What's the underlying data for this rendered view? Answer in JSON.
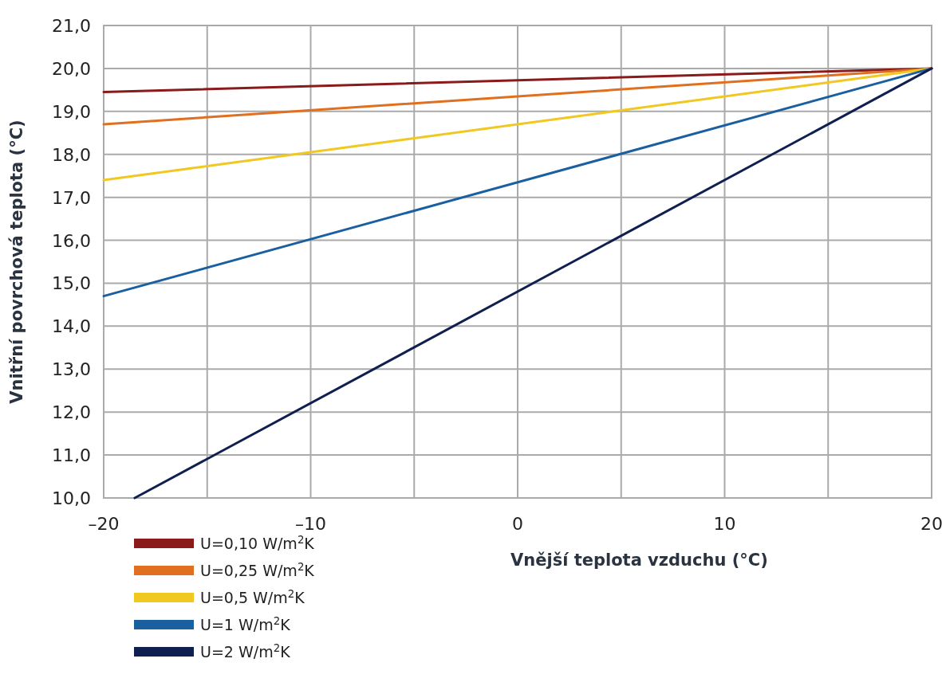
{
  "chart_data": {
    "type": "line",
    "xlabel": "Vnější teplota vzduchu (°C)",
    "ylabel": "Vnitřní povrchová teplota (°C)",
    "xlim": [
      -20,
      20
    ],
    "ylim": [
      10,
      21
    ],
    "xticks": [
      {
        "value": -20,
        "label": "–20"
      },
      {
        "value": -15,
        "label": null
      },
      {
        "value": -10,
        "label": "–10"
      },
      {
        "value": -5,
        "label": null
      },
      0,
      {
        "value": 5,
        "label": null
      },
      10,
      {
        "value": 15,
        "label": null
      },
      20
    ],
    "yticks": [
      {
        "value": 10,
        "label": "10,0"
      },
      {
        "value": 11,
        "label": "11,0"
      },
      {
        "value": 12,
        "label": "12,0"
      },
      {
        "value": 13,
        "label": "13,0"
      },
      {
        "value": 14,
        "label": "14,0"
      },
      {
        "value": 15,
        "label": "15,0"
      },
      {
        "value": 16,
        "label": "16,0"
      },
      {
        "value": 17,
        "label": "17,0"
      },
      {
        "value": 18,
        "label": "18,0"
      },
      {
        "value": 19,
        "label": "19,0"
      },
      {
        "value": 20,
        "label": "20,0"
      },
      {
        "value": 21,
        "label": "21,0"
      }
    ],
    "grid": true,
    "legend": "bottom left",
    "marker": "none",
    "line_style": "solid",
    "series": [
      {
        "name": "U=0,10 W/m$^{2}$K",
        "color": "#8b1a1a",
        "x": [
          -20,
          20
        ],
        "values": [
          19.45,
          20
        ]
      },
      {
        "name": "U=0,25 W/m$^{2}$K",
        "color": "#e07020",
        "x": [
          -20,
          20
        ],
        "values": [
          18.7,
          20
        ]
      },
      {
        "name": "U=0,5 W/m$^{2}$K",
        "color": "#f0c820",
        "x": [
          -20,
          20
        ],
        "values": [
          17.4,
          20
        ]
      },
      {
        "name": "U=1 W/m$^{2}$K",
        "color": "#1a5fa0",
        "x": [
          -20,
          20
        ],
        "values": [
          14.7,
          20
        ]
      },
      {
        "name": "U=2 W/m$^{2}$K",
        "color": "#0f1f4f",
        "x": [
          -18.5,
          20
        ],
        "values": [
          10,
          20
        ]
      }
    ]
  }
}
